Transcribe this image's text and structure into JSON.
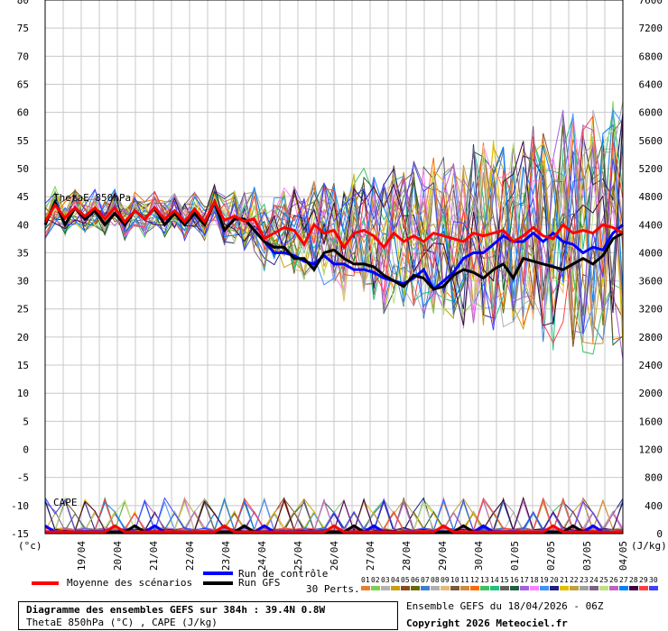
{
  "chart_data": {
    "type": "line",
    "left_axis": {
      "unit": "(°c)",
      "min": -15,
      "max": 80,
      "ticks": [
        80,
        75,
        70,
        65,
        60,
        55,
        50,
        45,
        40,
        35,
        30,
        25,
        20,
        15,
        10,
        5,
        0,
        -5,
        -10,
        -15
      ]
    },
    "right_axis": {
      "unit": "(J/kg)",
      "min": 0,
      "max": 7600,
      "ticks": [
        7600,
        7200,
        6800,
        6400,
        6000,
        5600,
        5200,
        4800,
        4400,
        4000,
        3600,
        3200,
        2800,
        2400,
        2000,
        1600,
        1200,
        800,
        400,
        0
      ]
    },
    "x_labels": [
      "19/04",
      "20/04",
      "21/04",
      "22/04",
      "23/04",
      "24/04",
      "25/04",
      "26/04",
      "27/04",
      "28/04",
      "29/04",
      "30/04",
      "01/05",
      "02/05",
      "03/05",
      "04/05"
    ],
    "grid": true,
    "panel_labels": {
      "thetae": "ThetaE 850hPa",
      "cape": "CAPE"
    },
    "series": [
      {
        "name": "Moyenne des scénarios",
        "color": "#ff0000",
        "values": [
          40.5,
          43.5,
          41.2,
          43,
          41.5,
          43,
          41,
          43,
          40.5,
          42.5,
          41,
          43,
          41,
          42.5,
          40.5,
          42.8,
          40.5,
          44,
          40.8,
          41.5,
          40.6,
          41,
          37.5,
          38.5,
          39.5,
          39,
          36.5,
          40,
          38.5,
          39,
          36,
          38.5,
          39,
          38,
          36,
          38.5,
          37,
          38,
          37,
          38.5,
          38,
          37.5,
          37,
          38.5,
          38,
          38.5,
          39,
          37,
          38,
          39.5,
          38,
          37.5,
          40,
          38.5,
          39,
          38.5,
          40,
          39.5,
          38.5
        ]
      },
      {
        "name": "Run de contrôle",
        "color": "#0000ff",
        "values": [
          40,
          44,
          40,
          43,
          41,
          42.5,
          40,
          42,
          40,
          42.5,
          41,
          43,
          40,
          42,
          40,
          42,
          40,
          44,
          39,
          41,
          41,
          39,
          37,
          35,
          35,
          34.5,
          33.5,
          33,
          34.5,
          33,
          33,
          32,
          32,
          31.5,
          30.5,
          30,
          29.5,
          30.5,
          32,
          28.5,
          30,
          31.5,
          34,
          35,
          35,
          36.5,
          38,
          37,
          37,
          38.5,
          37,
          38.5,
          37,
          36.5,
          35,
          36,
          35.5,
          38.5,
          40
        ]
      },
      {
        "name": "Run GFS",
        "color": "#000000",
        "values": [
          40,
          44,
          40,
          43,
          41,
          42.5,
          40,
          42,
          40,
          42.5,
          41,
          43,
          40,
          42,
          40,
          42,
          40,
          44,
          39,
          41,
          41,
          39,
          37,
          36,
          36,
          34,
          34,
          32,
          35,
          35.5,
          34,
          33,
          33,
          32.5,
          31,
          30,
          29,
          31,
          30.5,
          28.5,
          29,
          31,
          32,
          31.5,
          30.5,
          32,
          33,
          30.5,
          34,
          33.5,
          33,
          32.5,
          32,
          33,
          34,
          33,
          34.5,
          37.5,
          38.5
        ]
      }
    ],
    "legend": {
      "mean": "Moyenne des scénarios",
      "control": "Run de contrôle",
      "gfs": "Run GFS",
      "perts": "30 Perts."
    },
    "pert_numbers": [
      "01",
      "02",
      "03",
      "04",
      "05",
      "06",
      "07",
      "08",
      "09",
      "10",
      "11",
      "12",
      "13",
      "14",
      "15",
      "16",
      "17",
      "18",
      "19",
      "20",
      "21",
      "22",
      "23",
      "24",
      "25",
      "26",
      "27",
      "28",
      "29",
      "30"
    ],
    "pert_colors": [
      "#e8802a",
      "#7bd14f",
      "#b2b2b2",
      "#c8a010",
      "#8a4a1a",
      "#6a6a00",
      "#3a7fd0",
      "#b0b0b0",
      "#e4b878",
      "#7a5a3a",
      "#d08a40",
      "#ff6a00",
      "#40c060",
      "#20c080",
      "#606060",
      "#206040",
      "#a060e0",
      "#ff80ff",
      "#4090ff",
      "#202080",
      "#e0c000",
      "#c0a040",
      "#a0a0a0",
      "#806080",
      "#c0e080",
      "#c060c0",
      "#0080ff",
      "#400040",
      "#ff4040",
      "#4040ff"
    ]
  },
  "info": {
    "line1": "Diagramme des ensembles GEFS sur 384h : 39.4N 0.8W",
    "line2": "ThetaE 850hPa (°C) , CAPE (J/kg)"
  },
  "footer": {
    "run": "Ensemble GEFS du 18/04/2026 - 06Z",
    "copyright": "Copyright 2026 Meteociel.fr"
  }
}
